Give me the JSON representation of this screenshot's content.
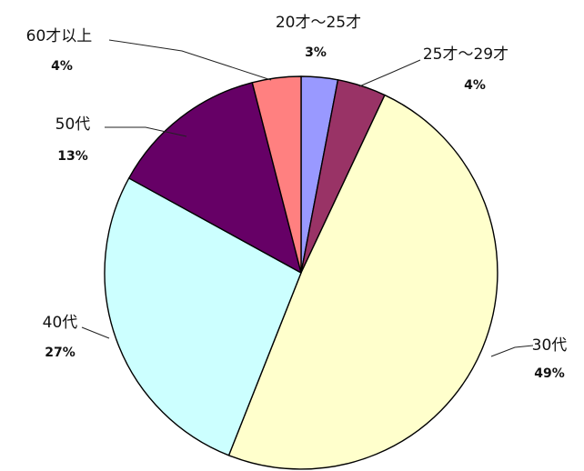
{
  "chart_data": {
    "type": "pie",
    "title": "",
    "slices": [
      {
        "label": "20才～25才",
        "value": 3,
        "percent_label": "3%",
        "color": "#9999ff"
      },
      {
        "label": "25才～29才",
        "value": 4,
        "percent_label": "4%",
        "color": "#993366"
      },
      {
        "label": "30代",
        "value": 49,
        "percent_label": "49%",
        "color": "#ffffcc"
      },
      {
        "label": "40代",
        "value": 27,
        "percent_label": "27%",
        "color": "#ccffff"
      },
      {
        "label": "50代",
        "value": 13,
        "percent_label": "13%",
        "color": "#660066"
      },
      {
        "label": "60才以上",
        "value": 4,
        "percent_label": "4%",
        "color": "#ff8080"
      }
    ],
    "start_angle": "12 o'clock",
    "direction": "clockwise",
    "legend": "none",
    "data_labels": "outside with leader lines"
  }
}
